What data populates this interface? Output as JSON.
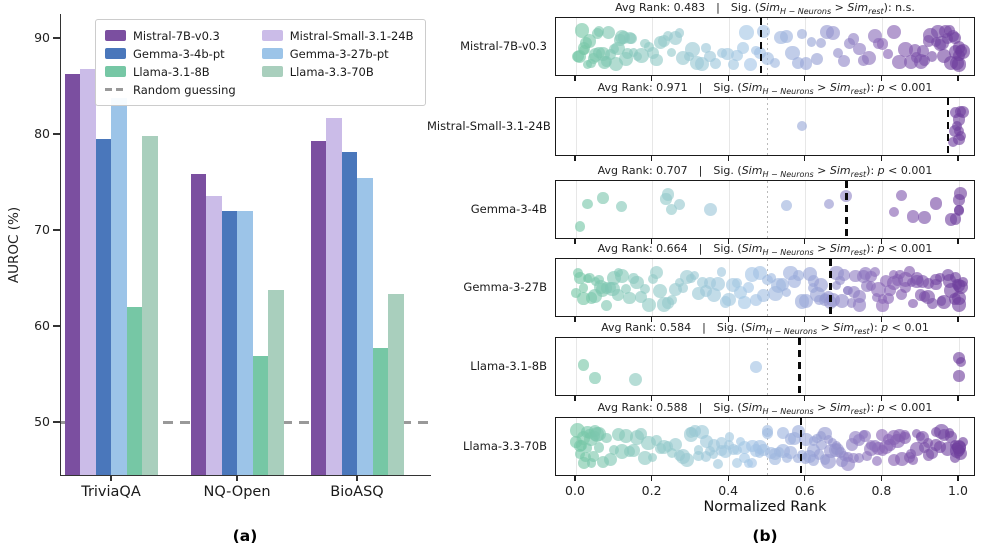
{
  "chart_data": [
    {
      "type": "bar",
      "caption": "(a)",
      "ylabel": "AUROC (%)",
      "yticks": [
        50,
        60,
        70,
        80,
        90
      ],
      "ylim": [
        44.5,
        92.5
      ],
      "grid": false,
      "legend_position": "upper center, 2 columns",
      "categories": [
        "TriviaQA",
        "NQ-Open",
        "BioASQ"
      ],
      "series": [
        {
          "name": "Mistral-7B-v0.3",
          "color": "#7b4fa0",
          "values": [
            86.3,
            75.8,
            79.3
          ]
        },
        {
          "name": "Mistral-Small-3.1-24B",
          "color": "#cbbce8",
          "values": [
            86.8,
            73.5,
            81.7
          ]
        },
        {
          "name": "Gemma-3-4b-pt",
          "color": "#4a77bb",
          "values": [
            79.5,
            72.0,
            78.1
          ]
        },
        {
          "name": "Gemma-3-27b-pt",
          "color": "#9cc4e8",
          "values": [
            83.8,
            72.0,
            75.4
          ]
        },
        {
          "name": "Llama-3.1-8B",
          "color": "#76c7a5",
          "values": [
            62.0,
            56.9,
            57.7
          ]
        },
        {
          "name": "Llama-3.3-70B",
          "color": "#a9cfbd",
          "values": [
            79.8,
            63.8,
            63.3
          ]
        }
      ],
      "random_line": {
        "label": "Random guessing",
        "value": 50,
        "color": "#999999"
      }
    },
    {
      "type": "scatter",
      "caption": "(b)",
      "xlabel": "Normalized Rank",
      "xticks": [
        0,
        0.2,
        0.4,
        0.6,
        0.8,
        1.0
      ],
      "xtick_labels": [
        "0.0",
        "0.2",
        "0.4",
        "0.6",
        "0.8",
        "1.0"
      ],
      "ref_line": 0.5,
      "grid": true,
      "text": {
        "sep": "|",
        "sig_prefix": "Sig. (",
        "sim": "Sim",
        "sub_h": "H − Neurons",
        "gt": " > ",
        "sub_rest": "rest",
        "sig_close": "): "
      },
      "colormap": {
        "positions": [
          0,
          0.22,
          0.45,
          0.62,
          0.8,
          1
        ],
        "colors": [
          "#74c6a4",
          "#92c9c8",
          "#a4c6e6",
          "#97a3d6",
          "#8a66b6",
          "#6f3f9d"
        ],
        "alpha": 0.62
      },
      "rows": [
        {
          "label": "Mistral-7B-v0.3",
          "avg_rank": 0.483,
          "avg_label": "Avg Rank: 0.483",
          "sig_var": "",
          "sig_rest": "n.s.",
          "xs": [
            0.005,
            0.01,
            0.015,
            0.02,
            0.025,
            0.03,
            0.035,
            0.04,
            0.045,
            0.05,
            0.055,
            0.06,
            0.07,
            0.075,
            0.08,
            0.085,
            0.09,
            0.1,
            0.105,
            0.11,
            0.115,
            0.12,
            0.125,
            0.13,
            0.135,
            0.14,
            0.145,
            0.15,
            0.02,
            0.06,
            0.16,
            0.17,
            0.18,
            0.19,
            0.2,
            0.21,
            0.22,
            0.23,
            0.24,
            0.25,
            0.26,
            0.27,
            0.28,
            0.295,
            0.305,
            0.315,
            0.33,
            0.34,
            0.35,
            0.365,
            0.38,
            0.395,
            0.41,
            0.42,
            0.435,
            0.445,
            0.455,
            0.47,
            0.48,
            0.49,
            0.5,
            0.52,
            0.535,
            0.55,
            0.565,
            0.58,
            0.59,
            0.6,
            0.615,
            0.63,
            0.64,
            0.655,
            0.67,
            0.685,
            0.7,
            0.715,
            0.725,
            0.74,
            0.75,
            0.765,
            0.78,
            0.79,
            0.8,
            0.815,
            0.83,
            0.845,
            0.86,
            0.875,
            0.885,
            0.89,
            0.9,
            0.905,
            0.91,
            0.92,
            0.925,
            0.93,
            0.94,
            0.945,
            0.95,
            0.955,
            0.96,
            0.965,
            0.97,
            0.975,
            0.98,
            0.985,
            0.99,
            0.99,
            0.995,
            1,
            1,
            1,
            1.005,
            1.01
          ]
        },
        {
          "label": "Mistral-Small-3.1-24B",
          "avg_rank": 0.971,
          "avg_label": "Avg Rank: 0.971",
          "sig_var": "p",
          "sig_rest": " < 0.001",
          "xs": [
            0.59,
            0.985,
            0.99,
            0.99,
            0.995,
            1,
            1,
            1,
            1.005,
            1.005,
            1.01
          ]
        },
        {
          "label": "Gemma-3-4B",
          "avg_rank": 0.707,
          "avg_label": "Avg Rank: 0.707",
          "sig_var": "p",
          "sig_rest": " < 0.001",
          "xs": [
            0.01,
            0.03,
            0.07,
            0.12,
            0.235,
            0.24,
            0.25,
            0.27,
            0.35,
            0.55,
            0.66,
            0.705,
            0.83,
            0.85,
            0.88,
            0.91,
            0.94,
            0.98,
            0.99,
            1,
            1,
            1,
            1.005
          ]
        },
        {
          "label": "Gemma-3-27B",
          "avg_rank": 0.664,
          "avg_label": "Avg Rank: 0.664",
          "sig_var": "p",
          "sig_rest": " < 0.001",
          "xs": [
            0,
            0.02,
            0.04,
            0.06,
            0.08,
            0.1,
            0.12,
            0.14,
            0.16,
            0.18,
            0.2,
            0.22,
            0.24,
            0.26,
            0.28,
            0.3,
            0.32,
            0.34,
            0.36,
            0.38,
            0.4,
            0.42,
            0.44,
            0.46,
            0.48,
            0.5,
            0.52,
            0.54,
            0.56,
            0.58,
            0.6,
            0.62,
            0.64,
            0.66,
            0.68,
            0.7,
            0.72,
            0.74,
            0.76,
            0.78,
            0.8,
            0.82,
            0.84,
            0.86,
            0.88,
            0.9,
            0.92,
            0.94,
            0.96,
            0.98,
            0.01,
            0.03,
            0.05,
            0.07,
            0.09,
            0.11,
            0.13,
            0.15,
            0.17,
            0.19,
            0.21,
            0.23,
            0.25,
            0.27,
            0.29,
            0.31,
            0.33,
            0.35,
            0.37,
            0.39,
            0.41,
            0.43,
            0.45,
            0.47,
            0.49,
            0.51,
            0.53,
            0.55,
            0.57,
            0.59,
            0.61,
            0.63,
            0.65,
            0.67,
            0.69,
            0.71,
            0.73,
            0.75,
            0.77,
            0.79,
            0.81,
            0.83,
            0.85,
            0.87,
            0.89,
            0.91,
            0.93,
            0.95,
            0.97,
            0.99,
            0.005,
            0.02,
            0.035,
            0.05,
            0.065,
            0.08,
            0.095,
            0.11,
            0.62,
            0.635,
            0.65,
            0.665,
            0.68,
            0.695,
            0.71,
            0.725,
            0.74,
            0.755,
            0.77,
            0.785,
            0.8,
            0.815,
            0.83,
            0.845,
            0.86,
            0.875,
            0.89,
            0.905,
            0.92,
            0.94,
            0.955,
            0.975,
            1,
            0.99,
            0.995,
            1,
            1,
            1.005,
            1.01
          ]
        },
        {
          "label": "Llama-3.1-8B",
          "avg_rank": 0.584,
          "avg_label": "Avg Rank: 0.584",
          "sig_var": "p",
          "sig_rest": " < 0.01",
          "xs": [
            0.02,
            0.05,
            0.155,
            0.47,
            1,
            1,
            1.005
          ]
        },
        {
          "label": "Llama-3.3-70B",
          "avg_rank": 0.588,
          "avg_label": "Avg Rank: 0.588",
          "sig_var": "p",
          "sig_rest": " < 0.001",
          "xs": [
            0,
            0.02,
            0.04,
            0.06,
            0.08,
            0.1,
            0.12,
            0.14,
            0.16,
            0.18,
            0.2,
            0.22,
            0.24,
            0.26,
            0.28,
            0.3,
            0.32,
            0.34,
            0.36,
            0.38,
            0.4,
            0.42,
            0.44,
            0.46,
            0.48,
            0.5,
            0.52,
            0.54,
            0.56,
            0.58,
            0.6,
            0.62,
            0.64,
            0.66,
            0.68,
            0.7,
            0.72,
            0.74,
            0.76,
            0.78,
            0.8,
            0.82,
            0.84,
            0.86,
            0.88,
            0.9,
            0.92,
            0.94,
            0.96,
            0.98,
            0.01,
            0.03,
            0.05,
            0.07,
            0.09,
            0.11,
            0.13,
            0.15,
            0.17,
            0.19,
            0.21,
            0.23,
            0.25,
            0.27,
            0.29,
            0.31,
            0.33,
            0.35,
            0.37,
            0.39,
            0.41,
            0.43,
            0.45,
            0.47,
            0.49,
            0.51,
            0.53,
            0.55,
            0.57,
            0.59,
            0.61,
            0.63,
            0.65,
            0.67,
            0.69,
            0.71,
            0.73,
            0.75,
            0.77,
            0.79,
            0.81,
            0.83,
            0.85,
            0.87,
            0.89,
            0.91,
            0.93,
            0.95,
            0.97,
            0.99,
            0.005,
            0.015,
            0.025,
            0.035,
            0.045,
            0.055,
            0.01,
            0.02,
            0.03,
            0.04,
            0.05,
            0.06,
            0.3,
            0.32,
            0.34,
            0.36,
            0.38,
            0.4,
            0.42,
            0.44,
            0.46,
            0.48,
            0.5,
            0.52,
            0.54,
            0.56,
            0.58,
            0.6,
            0.62,
            0.64,
            0.66,
            0.68,
            0.62,
            0.635,
            0.65,
            0.665,
            0.68,
            0.695,
            0.71,
            0.725,
            0.74,
            0.755,
            0.77,
            0.785,
            0.8,
            0.815,
            0.83,
            0.845,
            0.86,
            0.875,
            0.89,
            0.905,
            0.92,
            0.94,
            0.955,
            0.975,
            1,
            0.99,
            0.995,
            1,
            1,
            1.005,
            1.01
          ]
        }
      ]
    }
  ]
}
